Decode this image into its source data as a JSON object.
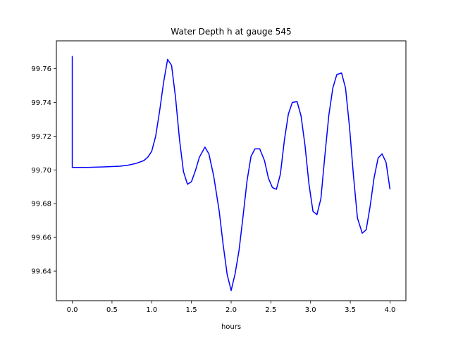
{
  "chart_data": {
    "type": "line",
    "title": "Water Depth h at gauge 545",
    "xlabel": "hours",
    "ylabel": "",
    "xlim": [
      -0.2,
      4.2
    ],
    "ylim": [
      99.6225,
      99.7765
    ],
    "xticks": [
      "0.0",
      "0.5",
      "1.0",
      "1.5",
      "2.0",
      "2.5",
      "3.0",
      "3.5",
      "4.0"
    ],
    "yticks": [
      "99.64",
      "99.66",
      "99.68",
      "99.70",
      "99.72",
      "99.74",
      "99.76"
    ],
    "grid": false,
    "series": [
      {
        "color": "#0000ff",
        "x": [
          0.0,
          0.0,
          0.05,
          0.2,
          0.4,
          0.6,
          0.7,
          0.8,
          0.9,
          0.95,
          1.0,
          1.05,
          1.1,
          1.15,
          1.2,
          1.25,
          1.3,
          1.35,
          1.4,
          1.45,
          1.5,
          1.55,
          1.6,
          1.67,
          1.72,
          1.78,
          1.85,
          1.9,
          1.95,
          2.0,
          2.05,
          2.1,
          2.15,
          2.2,
          2.25,
          2.3,
          2.36,
          2.42,
          2.47,
          2.52,
          2.57,
          2.62,
          2.67,
          2.72,
          2.77,
          2.83,
          2.88,
          2.93,
          2.98,
          3.03,
          3.08,
          3.13,
          3.18,
          3.23,
          3.28,
          3.33,
          3.39,
          3.44,
          3.49,
          3.54,
          3.59,
          3.65,
          3.7,
          3.75,
          3.8,
          3.85,
          3.9,
          3.95,
          4.0
        ],
        "y": [
          99.7675,
          99.7015,
          99.7015,
          99.7015,
          99.7018,
          99.7022,
          99.7028,
          99.7038,
          99.7055,
          99.7075,
          99.711,
          99.72,
          99.735,
          99.752,
          99.7655,
          99.762,
          99.743,
          99.718,
          99.699,
          99.6915,
          99.693,
          99.6995,
          99.7075,
          99.7135,
          99.7095,
          99.6965,
          99.6755,
          99.6555,
          99.638,
          99.6285,
          99.6385,
          99.6525,
          99.6725,
          99.6935,
          99.708,
          99.7125,
          99.7125,
          99.7055,
          99.695,
          99.6895,
          99.6885,
          99.6975,
          99.7175,
          99.733,
          99.74,
          99.7405,
          99.732,
          99.7145,
          99.6915,
          99.6755,
          99.6735,
          99.683,
          99.7085,
          99.7325,
          99.7485,
          99.7565,
          99.7575,
          99.7485,
          99.7255,
          99.6965,
          99.6715,
          99.6625,
          99.6645,
          99.6785,
          99.6955,
          99.707,
          99.7095,
          99.7045,
          99.6885
        ]
      }
    ]
  }
}
